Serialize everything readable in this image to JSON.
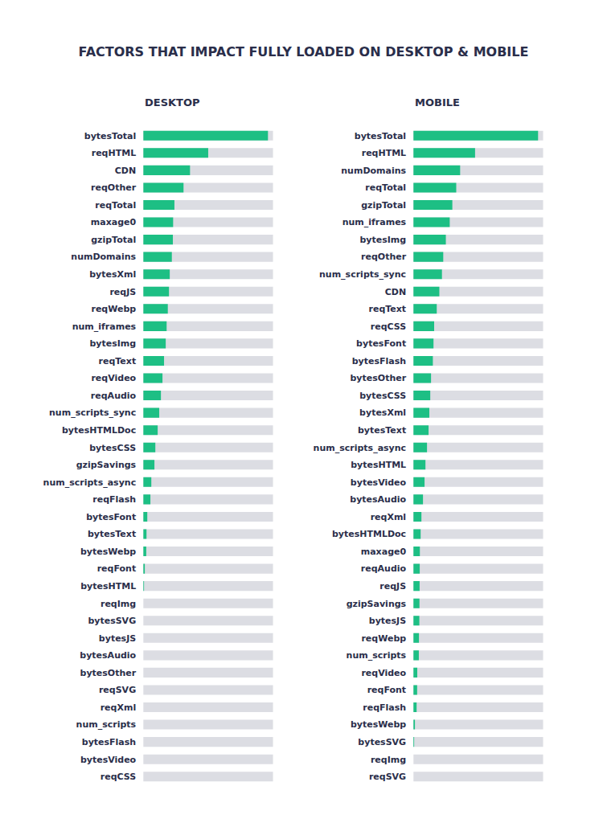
{
  "title": "FACTORS THAT IMPACT FULLY LOADED ON DESKTOP & MOBILE",
  "chart_data": [
    {
      "type": "bar",
      "title": "DESKTOP",
      "orientation": "horizontal",
      "color": "#1dbf84",
      "xlim": [
        0,
        100
      ],
      "tick_labels": "y",
      "grid": false,
      "categories": [
        "bytesTotal",
        "reqHTML",
        "CDN",
        "reqOther",
        "reqTotal",
        "maxage0",
        "gzipTotal",
        "numDomains",
        "bytesXml",
        "reqJS",
        "reqWebp",
        "num_iframes",
        "bytesImg",
        "reqText",
        "reqVideo",
        "reqAudio",
        "num_scripts_sync",
        "bytesHTMLDoc",
        "bytesCSS",
        "gzipSavings",
        "num_scripts_async",
        "reqFlash",
        "bytesFont",
        "bytesText",
        "bytesWebp",
        "reqFont",
        "bytesHTML",
        "reqImg",
        "bytesSVG",
        "bytesJS",
        "bytesAudio",
        "bytesOther",
        "reqSVG",
        "reqXml",
        "num_scripts",
        "bytesFlash",
        "bytesVideo",
        "reqCSS"
      ],
      "values": [
        96,
        50,
        36,
        31,
        24,
        23,
        22.8,
        22,
        20.4,
        19.8,
        18.9,
        18,
        17.3,
        16,
        14.8,
        13.6,
        12.3,
        11.1,
        9.3,
        8.6,
        6.2,
        5.5,
        3.1,
        2.5,
        2.3,
        1.2,
        0.6,
        0,
        0,
        0,
        0,
        0,
        0,
        0,
        0,
        0,
        0,
        0
      ]
    },
    {
      "type": "bar",
      "title": "MOBILE",
      "orientation": "horizontal",
      "color": "#1dbf84",
      "xlim": [
        0,
        100
      ],
      "tick_labels": "y",
      "grid": false,
      "categories": [
        "bytesTotal",
        "reqHTML",
        "numDomains",
        "reqTotal",
        "gzipTotal",
        "num_iframes",
        "bytesImg",
        "reqOther",
        "num_scripts_sync",
        "CDN",
        "reqText",
        "reqCSS",
        "bytesFont",
        "bytesFlash",
        "bytesOther",
        "bytesCSS",
        "bytesXml",
        "bytesText",
        "num_scripts_async",
        "bytesHTML",
        "bytesVideo",
        "bytesAudio",
        "reqXml",
        "bytesHTMLDoc",
        "maxage0",
        "reqAudio",
        "reqJS",
        "gzipSavings",
        "bytesJS",
        "reqWebp",
        "num_scripts",
        "reqVideo",
        "reqFont",
        "reqFlash",
        "bytesWebp",
        "bytesSVG",
        "reqImg",
        "reqSVG"
      ],
      "values": [
        96,
        47.5,
        36,
        33,
        30,
        28,
        25,
        23,
        22,
        20,
        18,
        16,
        15.5,
        15,
        13.6,
        13,
        12.3,
        11.7,
        10.5,
        9.3,
        8.6,
        7.4,
        6.2,
        5.6,
        5,
        4.9,
        4.8,
        4.7,
        4.6,
        4.3,
        4.2,
        3,
        2.9,
        2.5,
        1.2,
        0.6,
        0,
        0
      ]
    }
  ]
}
